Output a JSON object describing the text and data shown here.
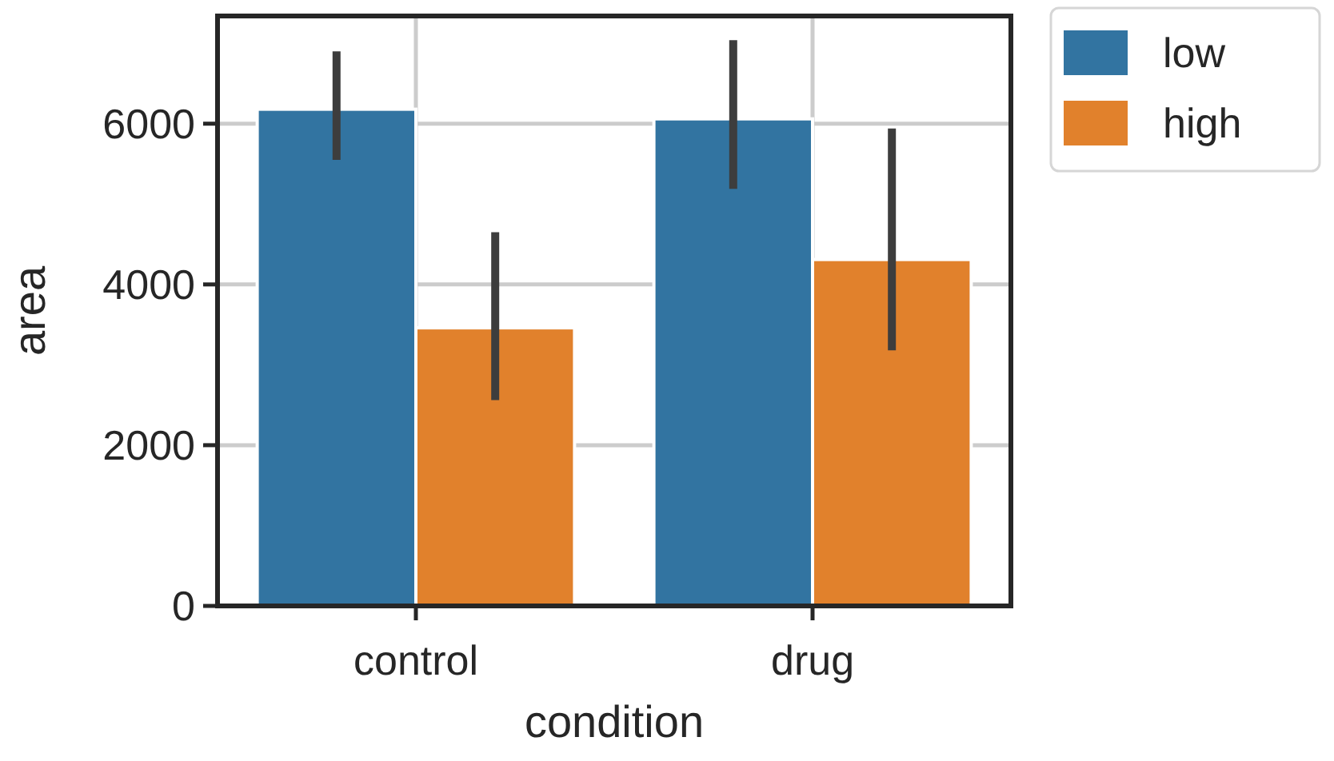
{
  "chart_data": {
    "type": "bar",
    "xlabel": "condition",
    "ylabel": "area",
    "categories": [
      "control",
      "drug"
    ],
    "series": [
      {
        "name": "low",
        "color": "#3274a1",
        "values": [
          6180,
          6060
        ],
        "errors": [
          [
            5550,
            6900
          ],
          [
            5190,
            7040
          ]
        ]
      },
      {
        "name": "high",
        "color": "#e1812c",
        "values": [
          3460,
          4310
        ],
        "errors": [
          [
            2560,
            4650
          ],
          [
            3180,
            5940
          ]
        ]
      }
    ],
    "ylim": [
      0,
      7340
    ],
    "yticks": [
      0,
      2000,
      4000,
      6000
    ],
    "grid": true,
    "legend": "top right"
  }
}
